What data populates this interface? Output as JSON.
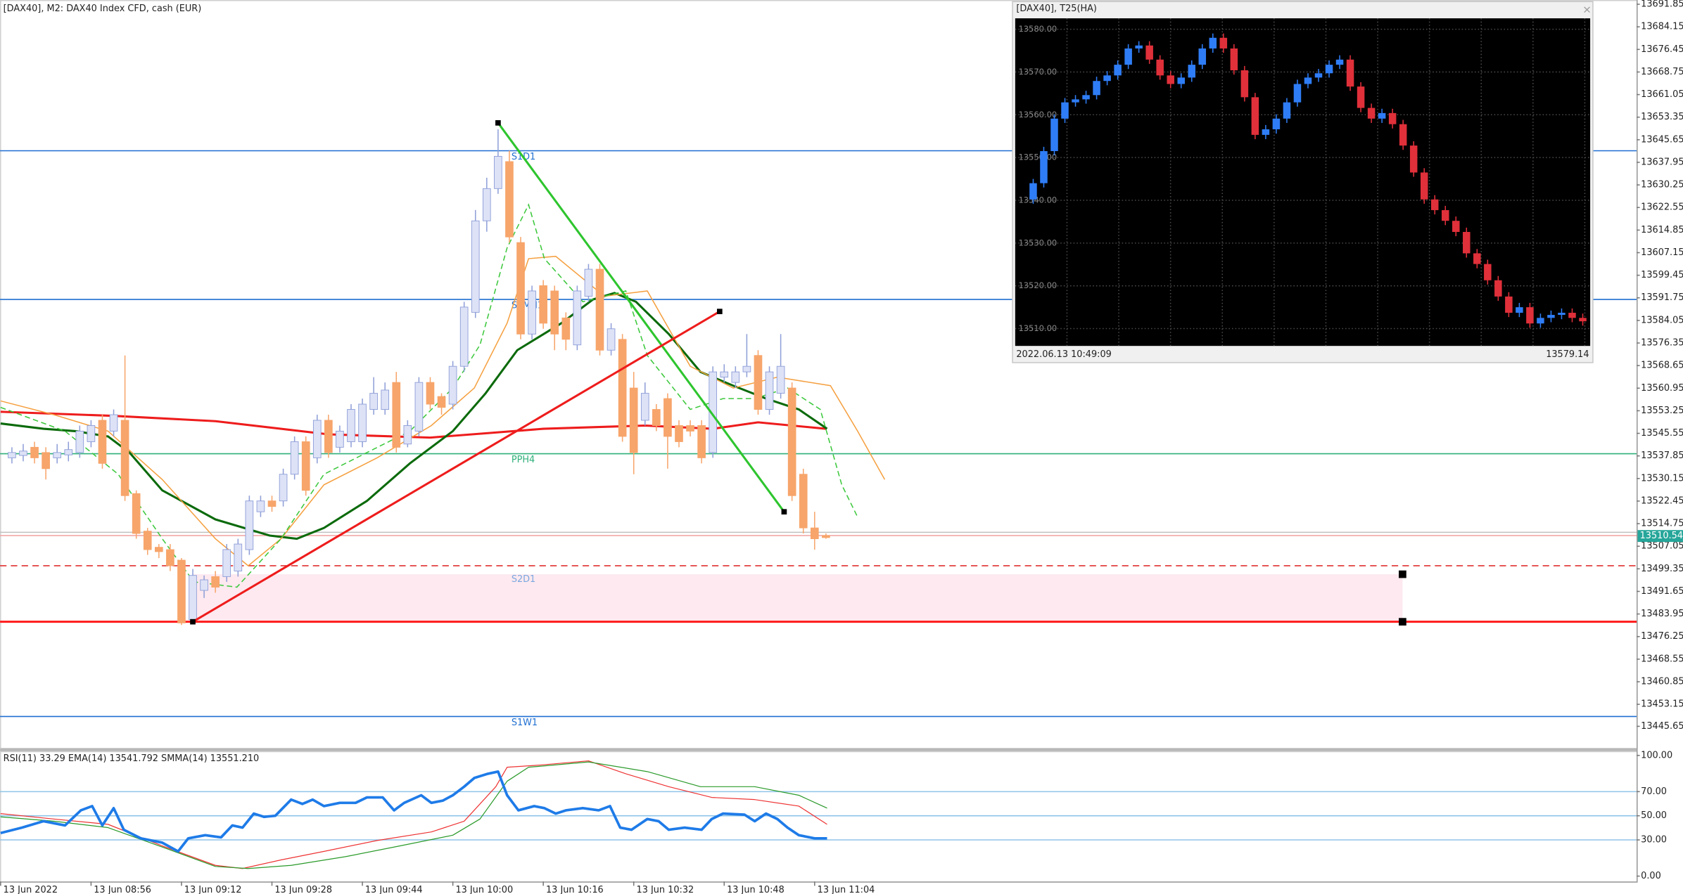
{
  "chart_data": [
    {
      "type": "candlestick",
      "title": "[DAX40], M2:  DAX40 Index CFD, cash (EUR)",
      "up_color": "#dde2f7",
      "up_edge": "#8f9fd8",
      "down_color": "#f7a56b",
      "open": [
        13537.2,
        13538.0,
        13540.8,
        13539.0,
        13537.2,
        13538.2,
        13539.0,
        13542.7,
        13550.0,
        13546.3,
        13550.0,
        13525.0,
        13512.2,
        13506.7,
        13505.9,
        13502.3,
        13482.0,
        13492.0,
        13496.7,
        13496.7,
        13498.6,
        13505.9,
        13518.8,
        13522.5,
        13522.5,
        13531.6,
        13542.7,
        13537.2,
        13550.0,
        13540.8,
        13542.7,
        13542.7,
        13553.7,
        13553.7,
        13562.9,
        13541.9,
        13546.3,
        13562.9,
        13558.1,
        13555.5,
        13568.4,
        13586.8,
        13618.0,
        13629.0,
        13638.2,
        13610.6,
        13579.4,
        13595.9,
        13594.1,
        13584.9,
        13575.7,
        13592.3,
        13601.5,
        13573.9,
        13577.6,
        13561.0,
        13550.0,
        13553.7,
        13557.4,
        13548.2,
        13548.2,
        13548.2,
        13539.0,
        13564.7,
        13562.9,
        13566.5,
        13572.1,
        13553.7,
        13559.2,
        13561.0,
        13531.6,
        13513.3,
        13510.7
      ],
      "high": [
        13540.8,
        13541.9,
        13542.7,
        13540.8,
        13541.9,
        13542.7,
        13548.2,
        13550.0,
        13551.9,
        13553.7,
        13572.1,
        13526.1,
        13513.3,
        13507.8,
        13507.8,
        13503.0,
        13499.3,
        13497.1,
        13498.6,
        13507.8,
        13509.6,
        13524.3,
        13524.3,
        13524.3,
        13533.5,
        13544.5,
        13544.5,
        13551.9,
        13551.9,
        13548.2,
        13555.5,
        13557.4,
        13564.7,
        13562.9,
        13566.5,
        13550.0,
        13564.7,
        13564.7,
        13559.2,
        13570.2,
        13590.4,
        13621.7,
        13632.7,
        13649.2,
        13641.9,
        13612.5,
        13595.9,
        13597.8,
        13595.9,
        13586.8,
        13595.9,
        13603.3,
        13603.3,
        13583.1,
        13579.4,
        13566.5,
        13562.9,
        13555.5,
        13559.2,
        13550.0,
        13550.0,
        13550.0,
        13568.4,
        13569.1,
        13568.4,
        13579.4,
        13573.9,
        13568.4,
        13579.4,
        13562.9,
        13533.5,
        13518.8,
        13511.4
      ],
      "low": [
        13535.3,
        13536.0,
        13535.3,
        13529.8,
        13535.3,
        13536.0,
        13537.2,
        13540.8,
        13533.5,
        13544.5,
        13522.5,
        13509.6,
        13504.1,
        13503.0,
        13498.6,
        13480.2,
        13480.9,
        13489.4,
        13491.2,
        13494.9,
        13496.7,
        13504.1,
        13517.0,
        13518.8,
        13520.6,
        13529.8,
        13524.3,
        13535.3,
        13537.2,
        13539.0,
        13540.8,
        13540.8,
        13551.9,
        13551.9,
        13539.0,
        13540.8,
        13544.5,
        13553.7,
        13551.9,
        13553.7,
        13566.5,
        13584.9,
        13614.3,
        13627.2,
        13610.6,
        13577.6,
        13577.6,
        13581.2,
        13573.9,
        13573.9,
        13573.9,
        13590.4,
        13572.1,
        13572.1,
        13542.7,
        13531.6,
        13548.2,
        13546.3,
        13533.5,
        13540.8,
        13544.5,
        13535.3,
        13537.2,
        13562.9,
        13561.0,
        13564.7,
        13551.9,
        13551.9,
        13557.4,
        13522.5,
        13511.4,
        13505.9,
        13509.6
      ],
      "close": [
        13539.0,
        13539.5,
        13537.2,
        13533.5,
        13539.0,
        13540.0,
        13546.3,
        13548.2,
        13535.3,
        13551.9,
        13524.3,
        13511.4,
        13505.9,
        13505.2,
        13500.4,
        13480.9,
        13497.1,
        13495.6,
        13493.1,
        13505.9,
        13507.8,
        13522.5,
        13522.5,
        13520.6,
        13531.6,
        13542.7,
        13526.1,
        13550.0,
        13539.0,
        13546.3,
        13553.7,
        13555.5,
        13559.2,
        13560.3,
        13540.8,
        13548.2,
        13562.9,
        13555.5,
        13554.4,
        13568.4,
        13588.6,
        13618.0,
        13629.0,
        13640.0,
        13612.5,
        13579.4,
        13594.1,
        13583.1,
        13579.4,
        13577.6,
        13594.1,
        13601.5,
        13573.9,
        13581.2,
        13544.5,
        13539.0,
        13559.2,
        13548.2,
        13544.5,
        13542.7,
        13546.3,
        13537.2,
        13566.5,
        13566.5,
        13566.5,
        13568.4,
        13553.7,
        13566.5,
        13568.4,
        13524.3,
        13513.3,
        13509.6,
        13510.0
      ],
      "xlim": [
        -1.05,
        143.7
      ],
      "xticks": [
        {
          "value": -1,
          "label": "13 Jun 2022"
        },
        {
          "value": 7,
          "label": "13 Jun 08:56"
        },
        {
          "value": 15,
          "label": "13 Jun 09:12"
        },
        {
          "value": 23,
          "label": "13 Jun 09:28"
        },
        {
          "value": 31,
          "label": "13 Jun 09:44"
        },
        {
          "value": 39,
          "label": "13 Jun 10:00"
        },
        {
          "value": 47,
          "label": "13 Jun 10:16"
        },
        {
          "value": 55,
          "label": "13 Jun 10:32"
        },
        {
          "value": 63,
          "label": "13 Jun 10:48"
        },
        {
          "value": 71,
          "label": "13 Jun 11:04"
        }
      ],
      "ylim": [
        13438.3,
        13693.3
      ],
      "yticks": [
        13691.85,
        13684.15,
        13676.45,
        13668.75,
        13661.05,
        13653.35,
        13645.65,
        13637.95,
        13630.25,
        13622.55,
        13614.85,
        13607.15,
        13599.45,
        13591.75,
        13584.05,
        13576.35,
        13568.65,
        13560.95,
        13553.25,
        13545.55,
        13537.85,
        13530.15,
        13522.45,
        13514.75,
        13507.05,
        13499.35,
        13491.65,
        13483.95,
        13476.25,
        13468.55,
        13460.85,
        13453.15,
        13445.65
      ],
      "last_price": {
        "value": 13510.54,
        "color": "#26a69a"
      },
      "levels": [
        {
          "value": 13641.9,
          "color": "#1f6fd1",
          "label": "S1D1"
        },
        {
          "value": 13591.2,
          "color": "#1f6fd1",
          "label": "S1MN1"
        },
        {
          "value": 13538.6,
          "color": "#2fb07a",
          "label": "PPH4"
        },
        {
          "value": 13511.8,
          "color": "#c0c0c0"
        },
        {
          "value": 13510.7,
          "color": "#f2a0a0"
        },
        {
          "value": 13500.4,
          "color": "#e03030",
          "dash": true
        },
        {
          "value": 13481.3,
          "color": "#ff1a1a",
          "width": 2
        },
        {
          "value": 13449.0,
          "color": "#1f6fd1",
          "label": "S1W1"
        }
      ],
      "zone": {
        "x": [
          16,
          123
        ],
        "from": 13481.3,
        "to": 13497.5,
        "color": "#fde9ef",
        "label": "S2D1"
      },
      "trendlines": [
        {
          "color": "#2ec52e",
          "x": [
            43,
            68.3
          ],
          "values": [
            13651.4,
            13518.8
          ]
        },
        {
          "color": "#ee1c1c",
          "x": [
            16,
            62.6
          ],
          "values": [
            13481.3,
            13587.1
          ]
        }
      ],
      "overlays": [
        {
          "color": "#ee1c1c",
          "width": 2,
          "x": [
            -1.0,
            9,
            18,
            28,
            37,
            42,
            47,
            56,
            62,
            66,
            72
          ],
          "values": [
            13552.9,
            13551.5,
            13549.7,
            13545.2,
            13544.1,
            13545.6,
            13547.1,
            13548.2,
            13547.1,
            13549.3,
            13547.1
          ]
        },
        {
          "color": "#0b6a0b",
          "width": 2,
          "x": [
            -1.0,
            2.8,
            5.6,
            8.5,
            10.4,
            13.3,
            18.0,
            22.8,
            25.2,
            27.6,
            31.4,
            35.2,
            39.0,
            41.9,
            44.7,
            48.6,
            51.4,
            53.3,
            55.2,
            58.1,
            60.9,
            63.8,
            66.7,
            69.6,
            72.1
          ],
          "values": [
            13548.9,
            13547.1,
            13546.3,
            13544.5,
            13539.0,
            13526.1,
            13516.2,
            13510.7,
            13509.6,
            13513.3,
            13522.5,
            13535.3,
            13546.3,
            13559.2,
            13573.9,
            13583.1,
            13591.2,
            13593.4,
            13590.4,
            13579.4,
            13566.5,
            13561.8,
            13557.4,
            13553.7,
            13547.1
          ]
        },
        {
          "color": "#f5a040",
          "width": 1,
          "x": [
            -1.0,
            3.7,
            8.5,
            13.3,
            18.0,
            20.9,
            23.8,
            27.6,
            32.3,
            37.1,
            40.9,
            43.8,
            45.7,
            48.1,
            52.4,
            56.2,
            60.0,
            63.8,
            67.7,
            72.4,
            74.8,
            77.2
          ],
          "values": [
            13556.6,
            13551.9,
            13546.3,
            13529.8,
            13509.6,
            13500.4,
            13509.6,
            13528.0,
            13537.2,
            13548.2,
            13561.0,
            13583.1,
            13605.1,
            13605.9,
            13592.3,
            13594.1,
            13568.4,
            13561.0,
            13564.7,
            13561.8,
            13546.3,
            13529.8
          ]
        },
        {
          "color": "#3cc83c",
          "width": 1,
          "dash": true,
          "x": [
            -1.0,
            4.7,
            9.4,
            13.3,
            16.1,
            19.9,
            23.8,
            27.6,
            31.4,
            35.2,
            39.0,
            41.4,
            43.8,
            45.7,
            47.1,
            50.5,
            54.3,
            56.2,
            60.0,
            62.9,
            65.7,
            68.6,
            71.5,
            73.4,
            74.8
          ],
          "values": [
            13554.4,
            13546.3,
            13531.6,
            13509.6,
            13494.9,
            13493.1,
            13509.6,
            13531.6,
            13539.0,
            13546.3,
            13561.0,
            13575.7,
            13608.8,
            13623.5,
            13605.1,
            13590.4,
            13594.1,
            13572.1,
            13553.7,
            13557.4,
            13557.4,
            13561.0,
            13553.7,
            13528.0,
            13517.0
          ]
        }
      ]
    },
    {
      "type": "line",
      "title": "RSI(11) 33.29 EMA(14) 13541.792 SMMA(14) 13551.210",
      "ylim": [
        0,
        100
      ],
      "yticks": [
        {
          "value": 100,
          "label": "100.00"
        },
        {
          "value": 70,
          "label": "70.00"
        },
        {
          "value": 50,
          "label": "50.00"
        },
        {
          "value": 30,
          "label": "30.00"
        },
        {
          "value": 0,
          "label": "0.00"
        }
      ],
      "grid_levels": [
        70,
        50,
        30
      ],
      "grid_color": "#8fc4e8",
      "series": [
        {
          "color": "#ee3333",
          "width": 0.8,
          "x": [
            -1.0,
            3.7,
            8.5,
            13.3,
            18.0,
            20.4,
            23.8,
            27.6,
            32.3,
            37.1,
            40.0,
            42.8,
            43.8,
            46.7,
            51.0,
            54.3,
            58.1,
            61.9,
            65.7,
            69.6,
            72.1
          ],
          "values": [
            51.8,
            47.3,
            42.9,
            25.0,
            8.9,
            6.3,
            13.4,
            20.5,
            29.5,
            36.6,
            45.5,
            74.1,
            90.2,
            92.0,
            95.5,
            84.8,
            74.1,
            65.2,
            63.4,
            58.0,
            42.9
          ]
        },
        {
          "color": "#2a9a2a",
          "width": 0.8,
          "x": [
            -1.0,
            3.7,
            8.5,
            13.3,
            18.0,
            20.9,
            24.7,
            29.5,
            34.3,
            39.0,
            41.4,
            43.8,
            45.7,
            51.0,
            56.2,
            60.9,
            65.7,
            69.6,
            72.1
          ],
          "values": [
            49.1,
            45.5,
            40.2,
            24.1,
            8.0,
            6.3,
            8.9,
            16.1,
            25.0,
            33.9,
            47.3,
            78.6,
            90.2,
            94.6,
            86.6,
            74.1,
            74.1,
            67.0,
            56.3
          ]
        },
        {
          "color": "#1e7be8",
          "width": 2.4,
          "x": [
            -1.0,
            0.9,
            2.8,
            4.7,
            6.1,
            7.1,
            8.0,
            9.0,
            9.9,
            11.4,
            13.3,
            14.7,
            15.6,
            17.1,
            18.5,
            19.5,
            20.4,
            21.4,
            22.3,
            23.3,
            24.7,
            25.7,
            26.6,
            27.6,
            29.0,
            30.4,
            31.4,
            32.8,
            33.8,
            34.7,
            36.2,
            37.1,
            38.1,
            39.0,
            40.0,
            40.9,
            42.1,
            43.0,
            43.8,
            44.8,
            46.2,
            47.1,
            48.1,
            49.0,
            50.5,
            51.9,
            52.9,
            53.8,
            54.8,
            56.2,
            57.2,
            58.1,
            59.5,
            61.0,
            61.9,
            62.9,
            64.8,
            65.7,
            66.7,
            67.7,
            68.6,
            69.6,
            71.0,
            72.1
          ],
          "values": [
            35.7,
            40.2,
            45.5,
            42.0,
            54.5,
            58.0,
            42.0,
            56.3,
            38.4,
            31.3,
            27.7,
            20.5,
            31.3,
            33.9,
            32.1,
            42.0,
            40.2,
            51.8,
            49.1,
            50.0,
            63.4,
            59.8,
            63.4,
            58.0,
            60.7,
            60.7,
            65.2,
            65.2,
            54.5,
            60.7,
            67.0,
            60.7,
            62.5,
            67.0,
            74.1,
            81.3,
            84.8,
            86.6,
            67.0,
            54.5,
            58.0,
            56.3,
            51.8,
            54.5,
            56.3,
            54.5,
            58.0,
            40.2,
            38.4,
            47.3,
            45.5,
            38.4,
            40.2,
            38.4,
            47.3,
            51.8,
            50.9,
            45.5,
            51.8,
            47.3,
            40.2,
            33.9,
            31.3,
            31.3
          ]
        }
      ]
    },
    {
      "type": "heikin_ashi",
      "title": "[DAX40], T25(HA)",
      "close_icon": "×",
      "footer_left": "2022.06.13 10:49:09",
      "footer_right": "13579.14",
      "up_color": "#2f7df6",
      "down_color": "#e0303a",
      "ylim": [
        13506.2,
        13582.3
      ],
      "yticks": [
        {
          "value": 13580,
          "label": "13580.00"
        },
        {
          "value": 13570,
          "label": "13570.00"
        },
        {
          "value": 13560,
          "label": "13560.00"
        },
        {
          "value": 13550,
          "label": "13550.00"
        },
        {
          "value": 13540,
          "label": "13540.00"
        },
        {
          "value": 13530,
          "label": "13530.00"
        },
        {
          "value": 13520,
          "label": "13520.00"
        },
        {
          "value": 13510,
          "label": "13510.00"
        }
      ],
      "values": [
        13540.2,
        13544.0,
        13551.5,
        13559.1,
        13562.9,
        13563.6,
        13564.6,
        13567.9,
        13569.2,
        13571.7,
        13575.5,
        13576.2,
        13572.9,
        13569.2,
        13567.2,
        13568.7,
        13571.7,
        13575.5,
        13578.0,
        13575.5,
        13570.4,
        13564.1,
        13555.3,
        13556.6,
        13559.1,
        13562.9,
        13567.2,
        13568.7,
        13569.7,
        13571.7,
        13572.9,
        13566.6,
        13561.6,
        13559.1,
        13560.4,
        13557.8,
        13552.8,
        13546.5,
        13540.2,
        13537.7,
        13535.2,
        13532.6,
        13527.6,
        13525.1,
        13521.3,
        13517.5,
        13513.7,
        13515.0,
        13511.2,
        13512.5,
        13513.2,
        13513.7,
        13512.5,
        13511.7
      ]
    }
  ]
}
